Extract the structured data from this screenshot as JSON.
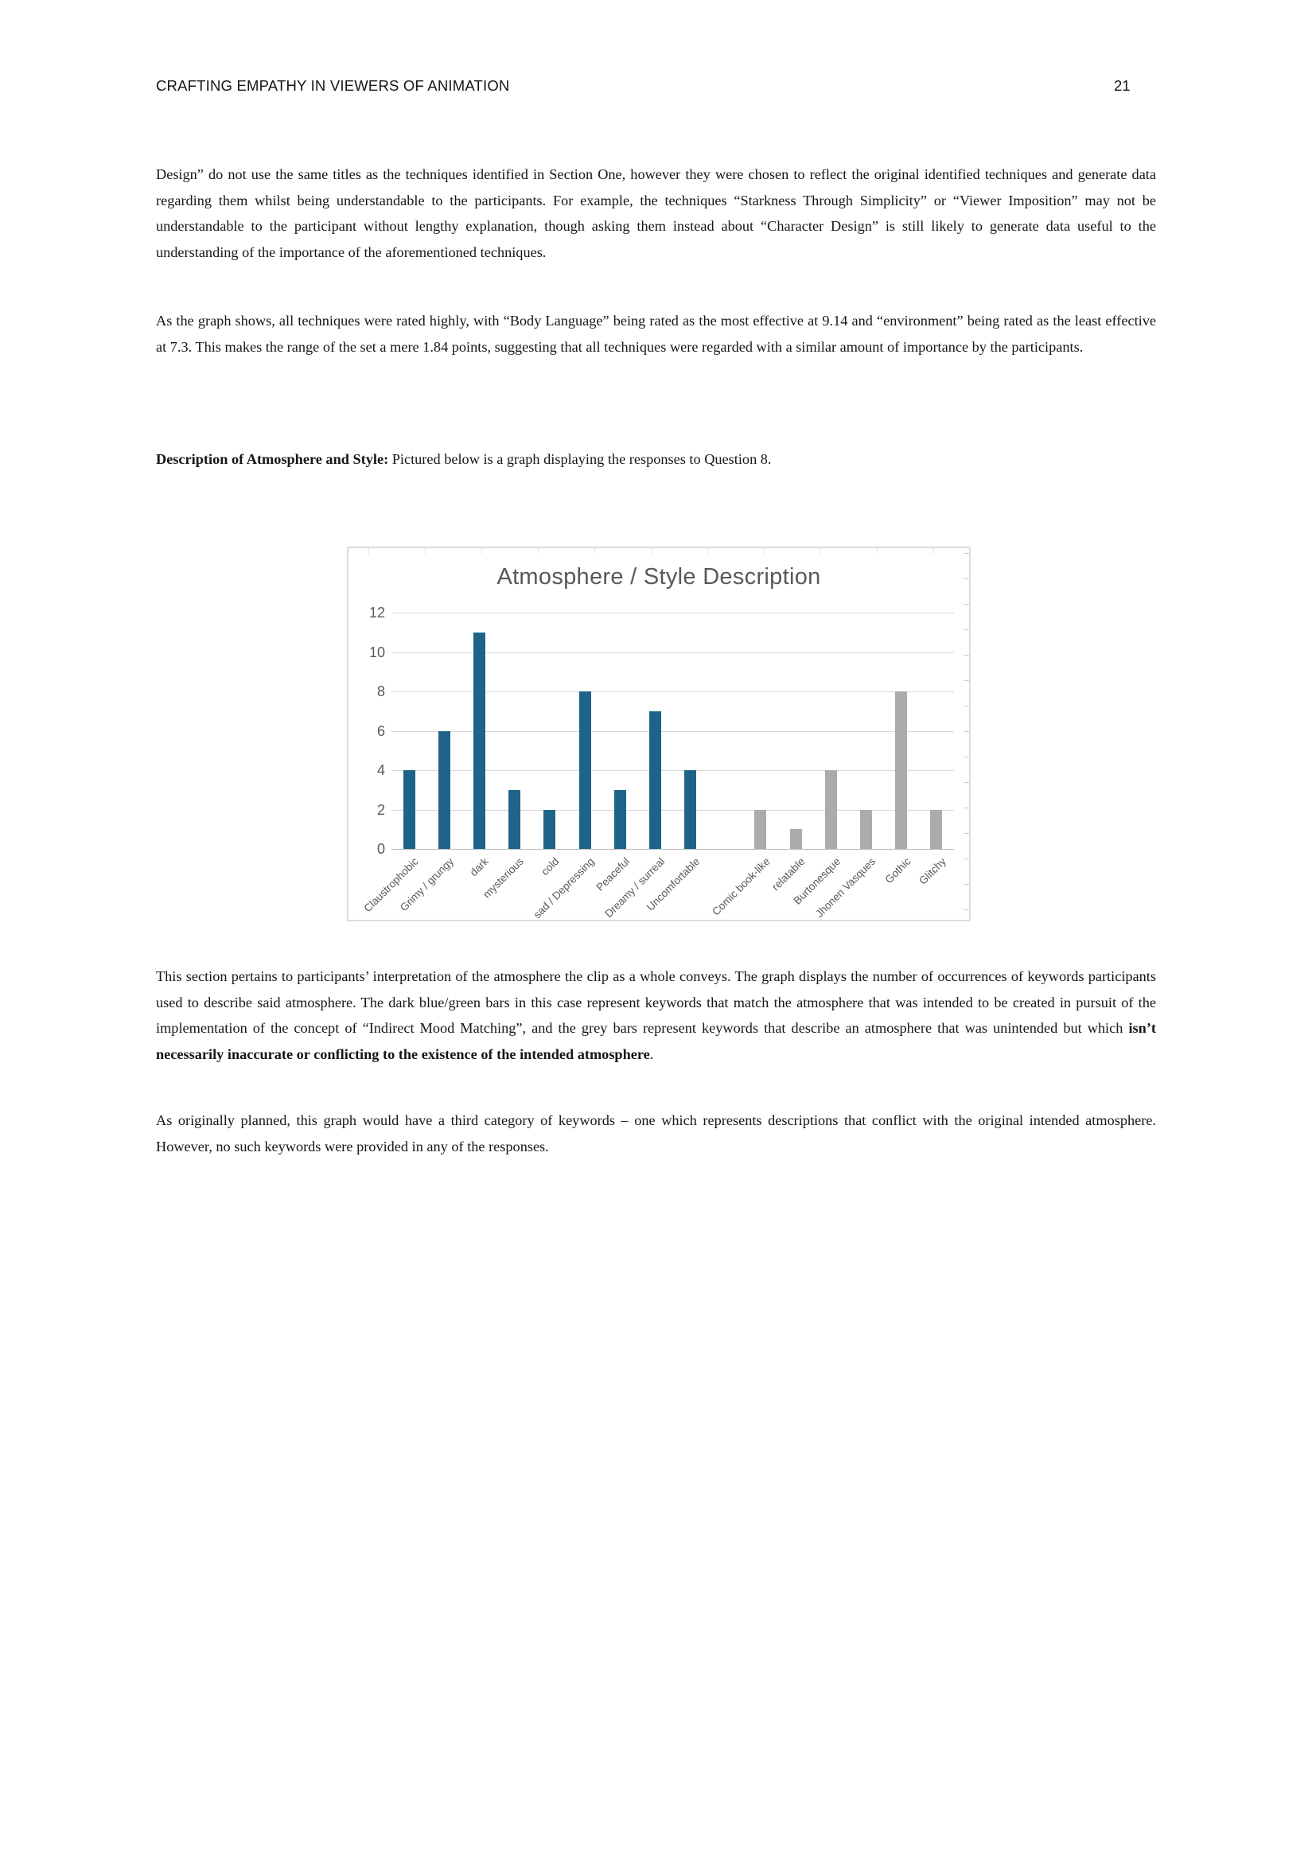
{
  "header": {
    "title": "CRAFTING EMPATHY IN VIEWERS OF ANIMATION",
    "page_number": "21"
  },
  "paragraphs": {
    "p1": "Design” do not use the same titles as the techniques identified in Section One, however they were chosen to reflect the original identified techniques and generate data regarding them whilst being understandable to the participants. For example, the techniques “Starkness Through Simplicity” or “Viewer Imposition” may not be understandable to the participant without lengthy explanation, though asking them instead about “Character Design” is still likely to generate data useful to the understanding of the importance of the aforementioned techniques.",
    "p2": "As the graph shows, all techniques were rated highly, with “Body Language” being rated as the most effective at 9.14 and “environment” being rated as the least effective at 7.3. This makes the range of the set a mere 1.84 points, suggesting that all techniques were regarded with a similar amount of importance by the participants.",
    "heading_bold": "Description of Atmosphere and Style:",
    "heading_rest": " Pictured below is a graph displaying the responses to Question 8.",
    "p3_normal": "This section pertains to participants’ interpretation of the atmosphere the clip as a whole conveys. The graph displays the number of occurrences of keywords participants used to describe said atmosphere. The dark blue/green bars in this case represent keywords that match the atmosphere that was intended to be created in pursuit of the implementation of the concept of “Indirect Mood Matching”, and the grey bars represent keywords that describe an atmosphere that was unintended but which ",
    "p3_bold": "isn’t necessarily inaccurate or conflicting to the existence of the intended atmosphere",
    "p3_period": ".",
    "p4": "As originally planned, this graph would have a third category of keywords – one which represents descriptions that conflict with the original intended atmosphere. However, no such keywords were provided in any of the responses."
  },
  "chart_data": {
    "type": "bar",
    "title": "Atmosphere / Style Description",
    "categories": [
      "Claustrophobic",
      "Grimy / grungy",
      "dark",
      "mysterious",
      "cold",
      "sad / Depressing",
      "Peaceful",
      "Dreamy / surreal",
      "Uncomfortable",
      "",
      "Comic book-like",
      "relatable",
      "Burtonesque",
      "Jhonen Vasques",
      "Gothic",
      "Glitchy"
    ],
    "values": [
      4,
      6,
      11,
      3,
      2,
      8,
      3,
      7,
      4,
      null,
      2,
      1,
      4,
      2,
      8,
      2
    ],
    "groups": [
      "intended",
      "intended",
      "intended",
      "intended",
      "intended",
      "intended",
      "intended",
      "intended",
      "intended",
      null,
      "unintended",
      "unintended",
      "unintended",
      "unintended",
      "unintended",
      "unintended"
    ],
    "colors": {
      "intended": "#1f6488",
      "unintended": "#ababab"
    },
    "xlabel": "",
    "ylabel": "",
    "ylim": [
      0,
      12
    ],
    "yticks": [
      0,
      2,
      4,
      6,
      8,
      10,
      12
    ],
    "grid": true,
    "legend": "none"
  }
}
